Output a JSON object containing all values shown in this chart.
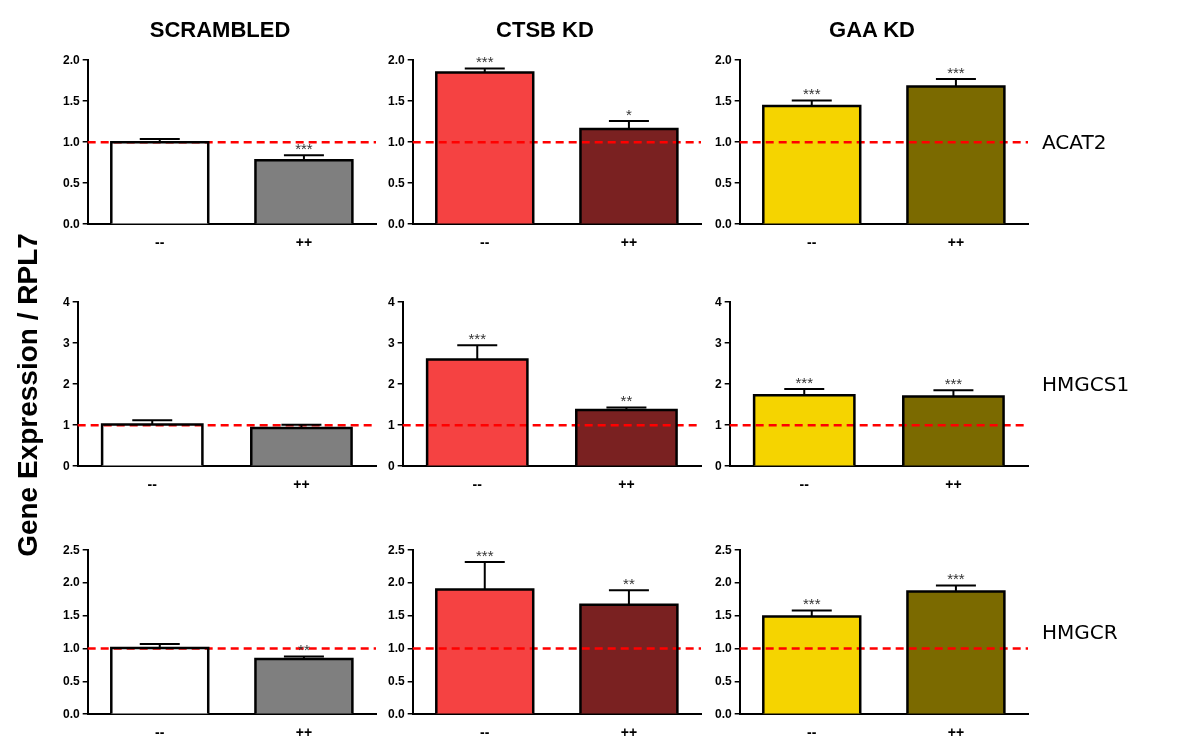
{
  "chart_data": [
    {
      "type": "bar",
      "title": "SCRAMBLED",
      "categories": [
        "--",
        "++"
      ],
      "values": [
        1.0,
        0.78
      ],
      "colors": [
        "#ffffff",
        "#7f7f7f"
      ],
      "errors": [
        [
          1.0,
          1.04
        ],
        [
          0.78,
          0.84
        ]
      ],
      "ylim": [
        0,
        2
      ],
      "yticks": [
        {
          "value": 0,
          "label": "0.0"
        },
        0.5,
        {
          "value": 1,
          "label": "1.0"
        },
        1.5,
        {
          "value": 2,
          "label": "2.0"
        }
      ],
      "ref_lines": [
        {
          "axis": "y",
          "value": 1,
          "color": "#ff0000",
          "line_style": "dashed"
        }
      ],
      "annotations": [
        {
          "text": "***",
          "x": "++",
          "y": 0.84
        }
      ]
    },
    {
      "type": "bar",
      "title": "CTSB KD",
      "categories": [
        "--",
        "++"
      ],
      "values": [
        1.85,
        1.16
      ],
      "colors": [
        "#f54242",
        "#7a2121"
      ],
      "errors": [
        [
          1.85,
          1.9
        ],
        [
          1.16,
          1.26
        ]
      ],
      "ylim": [
        0,
        2
      ],
      "yticks": [
        {
          "value": 0,
          "label": "0.0"
        },
        0.5,
        {
          "value": 1,
          "label": "1.0"
        },
        1.5,
        {
          "value": 2,
          "label": "2.0"
        }
      ],
      "ref_lines": [
        {
          "axis": "y",
          "value": 1,
          "color": "#ff0000",
          "line_style": "dashed"
        }
      ],
      "annotations": [
        {
          "text": "***",
          "x": "--",
          "y": 1.9
        },
        {
          "text": "*",
          "x": "++",
          "y": 1.26
        }
      ]
    },
    {
      "type": "bar",
      "title": "GAA KD",
      "categories": [
        "--",
        "++"
      ],
      "values": [
        1.44,
        1.68
      ],
      "colors": [
        "#f5d400",
        "#7b6a00"
      ],
      "errors": [
        [
          1.44,
          1.51
        ],
        [
          1.68,
          1.77
        ]
      ],
      "ylim": [
        0,
        2
      ],
      "yticks": [
        {
          "value": 0,
          "label": "0.0"
        },
        0.5,
        {
          "value": 1,
          "label": "1.0"
        },
        1.5,
        {
          "value": 2,
          "label": "2.0"
        }
      ],
      "ref_lines": [
        {
          "axis": "y",
          "value": 1,
          "color": "#ff0000",
          "line_style": "dashed"
        }
      ],
      "annotations": [
        {
          "text": "***",
          "x": "--",
          "y": 1.51
        },
        {
          "text": "***",
          "x": "++",
          "y": 1.77
        },
        "ACAT2"
      ]
    },
    {
      "type": "bar",
      "ylabel": "Gene Expression / RPL7",
      "categories": [
        "--",
        "++"
      ],
      "values": [
        1.02,
        0.93
      ],
      "colors": [
        "#ffffff",
        "#7f7f7f"
      ],
      "errors": [
        [
          1.02,
          1.12
        ],
        [
          0.93,
          1.01
        ]
      ],
      "ylim": [
        0,
        4
      ],
      "yticks": [
        0,
        1,
        2,
        3,
        4
      ],
      "ref_lines": [
        {
          "axis": "y",
          "value": 1,
          "color": "#ff0000",
          "line_style": "dashed"
        }
      ]
    },
    {
      "type": "bar",
      "categories": [
        "--",
        "++"
      ],
      "values": [
        2.6,
        1.37
      ],
      "colors": [
        "#f54242",
        "#7a2121"
      ],
      "errors": [
        [
          2.6,
          2.95
        ],
        [
          1.37,
          1.43
        ]
      ],
      "ylim": [
        0,
        4
      ],
      "yticks": [
        0,
        1,
        2,
        3,
        4
      ],
      "ref_lines": [
        {
          "axis": "y",
          "value": 1,
          "color": "#ff0000",
          "line_style": "dashed"
        }
      ],
      "annotations": [
        {
          "text": "***",
          "x": "--",
          "y": 2.95
        },
        {
          "text": "**",
          "x": "++",
          "y": 1.43
        }
      ]
    },
    {
      "type": "bar",
      "categories": [
        "--",
        "++"
      ],
      "values": [
        1.73,
        1.7
      ],
      "colors": [
        "#f5d400",
        "#7b6a00"
      ],
      "errors": [
        [
          1.73,
          1.88
        ],
        [
          1.7,
          1.85
        ]
      ],
      "ylim": [
        0,
        4
      ],
      "yticks": [
        0,
        1,
        2,
        3,
        4
      ],
      "ref_lines": [
        {
          "axis": "y",
          "value": 1,
          "color": "#ff0000",
          "line_style": "dashed"
        }
      ],
      "annotations": [
        {
          "text": "***",
          "x": "--",
          "y": 1.88
        },
        {
          "text": "***",
          "x": "++",
          "y": 1.85
        },
        "HMGCS1"
      ]
    },
    {
      "type": "bar",
      "categories": [
        "--",
        "++"
      ],
      "values": [
        1.01,
        0.84
      ],
      "colors": [
        "#ffffff",
        "#7f7f7f"
      ],
      "errors": [
        [
          1.01,
          1.07
        ],
        [
          0.84,
          0.88
        ]
      ],
      "ylim": [
        0,
        2.5
      ],
      "yticks": [
        {
          "value": 0,
          "label": "0.0"
        },
        0.5,
        {
          "value": 1,
          "label": "1.0"
        },
        1.5,
        {
          "value": 2,
          "label": "2.0"
        },
        2.5
      ],
      "ref_lines": [
        {
          "axis": "y",
          "value": 1,
          "color": "#ff0000",
          "line_style": "dashed"
        }
      ],
      "annotations": [
        {
          "text": "**",
          "x": "++",
          "y": 0.88
        }
      ]
    },
    {
      "type": "bar",
      "categories": [
        "--",
        "++"
      ],
      "values": [
        1.9,
        1.67
      ],
      "colors": [
        "#f54242",
        "#7a2121"
      ],
      "errors": [
        [
          1.9,
          2.32
        ],
        [
          1.67,
          1.89
        ]
      ],
      "ylim": [
        0,
        2.5
      ],
      "yticks": [
        {
          "value": 0,
          "label": "0.0"
        },
        0.5,
        {
          "value": 1,
          "label": "1.0"
        },
        1.5,
        {
          "value": 2,
          "label": "2.0"
        },
        2.5
      ],
      "ref_lines": [
        {
          "axis": "y",
          "value": 1,
          "color": "#ff0000",
          "line_style": "dashed"
        }
      ],
      "annotations": [
        {
          "text": "***",
          "x": "--",
          "y": 2.32
        },
        {
          "text": "**",
          "x": "++",
          "y": 1.89
        }
      ]
    },
    {
      "type": "bar",
      "categories": [
        "--",
        "++"
      ],
      "values": [
        1.49,
        1.87
      ],
      "colors": [
        "#f5d400",
        "#7b6a00"
      ],
      "errors": [
        [
          1.49,
          1.58
        ],
        [
          1.87,
          1.96
        ]
      ],
      "ylim": [
        0,
        2.5
      ],
      "yticks": [
        {
          "value": 0,
          "label": "0.0"
        },
        0.5,
        {
          "value": 1,
          "label": "1.0"
        },
        1.5,
        {
          "value": 2,
          "label": "2.0"
        },
        2.5
      ],
      "ref_lines": [
        {
          "axis": "y",
          "value": 1,
          "color": "#ff0000",
          "line_style": "dashed"
        }
      ],
      "annotations": [
        {
          "text": "***",
          "x": "--",
          "y": 1.58
        },
        {
          "text": "***",
          "x": "++",
          "y": 1.96
        },
        "HMGCR"
      ]
    }
  ]
}
